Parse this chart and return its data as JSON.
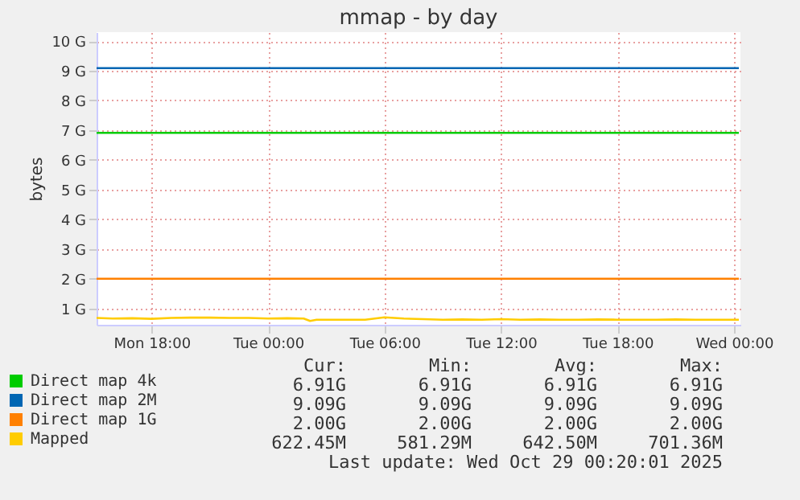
{
  "chart_data": {
    "type": "line",
    "title": "mmap - by day",
    "ylabel": "bytes",
    "xlim": [
      "2025-10-27T15:10",
      "2025-10-29T00:20"
    ],
    "xticks": [
      {
        "value": "2025-10-27T18:00",
        "label": "Mon 18:00"
      },
      {
        "value": "2025-10-28T00:00",
        "label": "Tue 00:00"
      },
      {
        "value": "2025-10-28T06:00",
        "label": "Tue 06:00"
      },
      {
        "value": "2025-10-28T12:00",
        "label": "Tue 12:00"
      },
      {
        "value": "2025-10-28T18:00",
        "label": "Tue 18:00"
      },
      {
        "value": "2025-10-29T00:00",
        "label": "Wed 00:00"
      }
    ],
    "ylim": [
      0.45,
      10.3
    ],
    "yticks": [
      {
        "value": 1,
        "label": "1 G"
      },
      {
        "value": 2,
        "label": "2 G"
      },
      {
        "value": 3,
        "label": "3 G"
      },
      {
        "value": 4,
        "label": "4 G"
      },
      {
        "value": 5,
        "label": "5 G"
      },
      {
        "value": 6,
        "label": "6 G"
      },
      {
        "value": 7,
        "label": "7 G"
      },
      {
        "value": 8,
        "label": "8 G"
      },
      {
        "value": 9,
        "label": "9 G"
      },
      {
        "value": 10,
        "label": "10 G"
      }
    ],
    "grid": true,
    "legend": "bottom",
    "marker": "none",
    "line_style": "solid",
    "series": [
      {
        "name": "Direct map 4k",
        "color": "#00cc00",
        "x": [
          "2025-10-27T15:10",
          "2025-10-29T00:15"
        ],
        "values": [
          6.91,
          6.91
        ]
      },
      {
        "name": "Direct map 2M",
        "color": "#0066b3",
        "x": [
          "2025-10-27T15:10",
          "2025-10-29T00:15"
        ],
        "values": [
          9.09,
          9.09
        ]
      },
      {
        "name": "Direct map 1G",
        "color": "#ff8000",
        "x": [
          "2025-10-27T15:10",
          "2025-10-29T00:15"
        ],
        "values": [
          2.0,
          2.0
        ]
      },
      {
        "name": "Mapped",
        "color": "#ffcc00",
        "x": [
          "2025-10-27T15:10",
          "2025-10-27T16:00",
          "2025-10-27T17:00",
          "2025-10-27T18:00",
          "2025-10-27T19:00",
          "2025-10-27T20:00",
          "2025-10-27T21:00",
          "2025-10-27T22:00",
          "2025-10-27T23:00",
          "2025-10-28T00:00",
          "2025-10-28T01:00",
          "2025-10-28T01:50",
          "2025-10-28T02:10",
          "2025-10-28T02:30",
          "2025-10-28T03:00",
          "2025-10-28T04:00",
          "2025-10-28T05:00",
          "2025-10-28T06:00",
          "2025-10-28T07:00",
          "2025-10-28T08:00",
          "2025-10-28T09:00",
          "2025-10-28T10:00",
          "2025-10-28T11:00",
          "2025-10-28T12:00",
          "2025-10-28T13:00",
          "2025-10-28T14:00",
          "2025-10-28T15:00",
          "2025-10-28T16:00",
          "2025-10-28T17:00",
          "2025-10-28T18:00",
          "2025-10-28T19:00",
          "2025-10-28T20:00",
          "2025-10-28T21:00",
          "2025-10-28T22:00",
          "2025-10-28T23:00",
          "2025-10-29T00:15"
        ],
        "values": [
          0.68,
          0.66,
          0.67,
          0.65,
          0.68,
          0.69,
          0.69,
          0.68,
          0.68,
          0.66,
          0.67,
          0.66,
          0.58,
          0.62,
          0.62,
          0.62,
          0.62,
          0.7,
          0.66,
          0.64,
          0.62,
          0.63,
          0.62,
          0.64,
          0.62,
          0.63,
          0.62,
          0.62,
          0.63,
          0.62,
          0.62,
          0.62,
          0.63,
          0.62,
          0.62,
          0.62
        ]
      }
    ],
    "annotations": [
      "Cur:",
      "Min:",
      "Avg:",
      "Max:",
      "6.91G",
      "6.91G",
      "6.91G",
      "6.91G",
      "9.09G",
      "9.09G",
      "9.09G",
      "9.09G",
      "2.00G",
      "2.00G",
      "2.00G",
      "2.00G",
      "622.45M",
      "581.29M",
      "642.50M",
      "701.36M",
      "Last update: Wed Oct 29 00:20:01 2025"
    ]
  }
}
